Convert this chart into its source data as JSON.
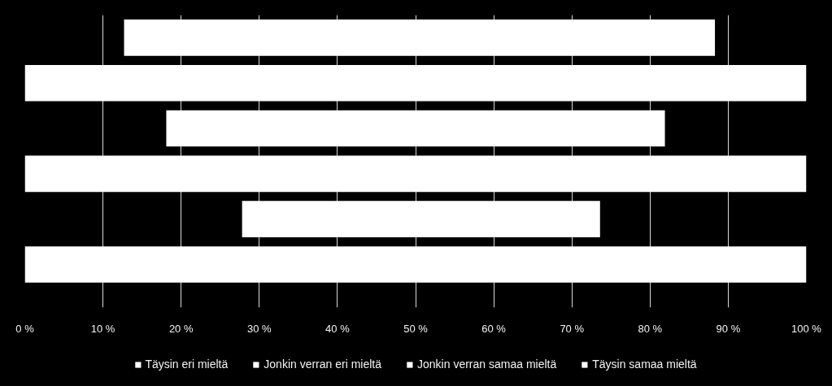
{
  "chart_data": {
    "type": "bar",
    "orientation": "horizontal",
    "categories": [
      null,
      null,
      null,
      null,
      null,
      null
    ],
    "series": [
      {
        "color": "#ffffff",
        "base": [
          12.7,
          0,
          18.1,
          0,
          27.8,
          0
        ],
        "values": [
          75.6,
          100,
          63.8,
          100,
          45.8,
          100
        ]
      },
      {
        "name": "Täysin eri mieltä",
        "color": "#ffffff",
        "values": [
          null,
          null,
          null,
          null,
          null,
          null
        ]
      },
      {
        "name": "Jonkin verran eri mieltä",
        "color": "#ffffff",
        "values": [
          null,
          null,
          null,
          null,
          null,
          null
        ]
      },
      {
        "name": "Jonkin verran samaa mieltä",
        "color": "#ffffff",
        "values": [
          null,
          null,
          null,
          null,
          null,
          null
        ]
      },
      {
        "name": "Täysin samaa mieltä",
        "color": "#ffffff",
        "values": [
          null,
          null,
          null,
          null,
          null,
          null
        ]
      }
    ],
    "xlim": [
      0,
      100
    ],
    "xticks": [
      {
        "value": 0,
        "label": "0 %"
      },
      {
        "value": 10,
        "label": "10 %"
      },
      {
        "value": 20,
        "label": "20 %"
      },
      {
        "value": 30,
        "label": "30 %"
      },
      {
        "value": 40,
        "label": "40 %"
      },
      {
        "value": 50,
        "label": "50 %"
      },
      {
        "value": 60,
        "label": "60 %"
      },
      {
        "value": 70,
        "label": "70 %"
      },
      {
        "value": 80,
        "label": "80 %"
      },
      {
        "value": 90,
        "label": "90 %"
      },
      {
        "value": 100,
        "label": "100 %"
      }
    ],
    "grid": "x",
    "legend": "bottom",
    "tick_labels": "x"
  }
}
